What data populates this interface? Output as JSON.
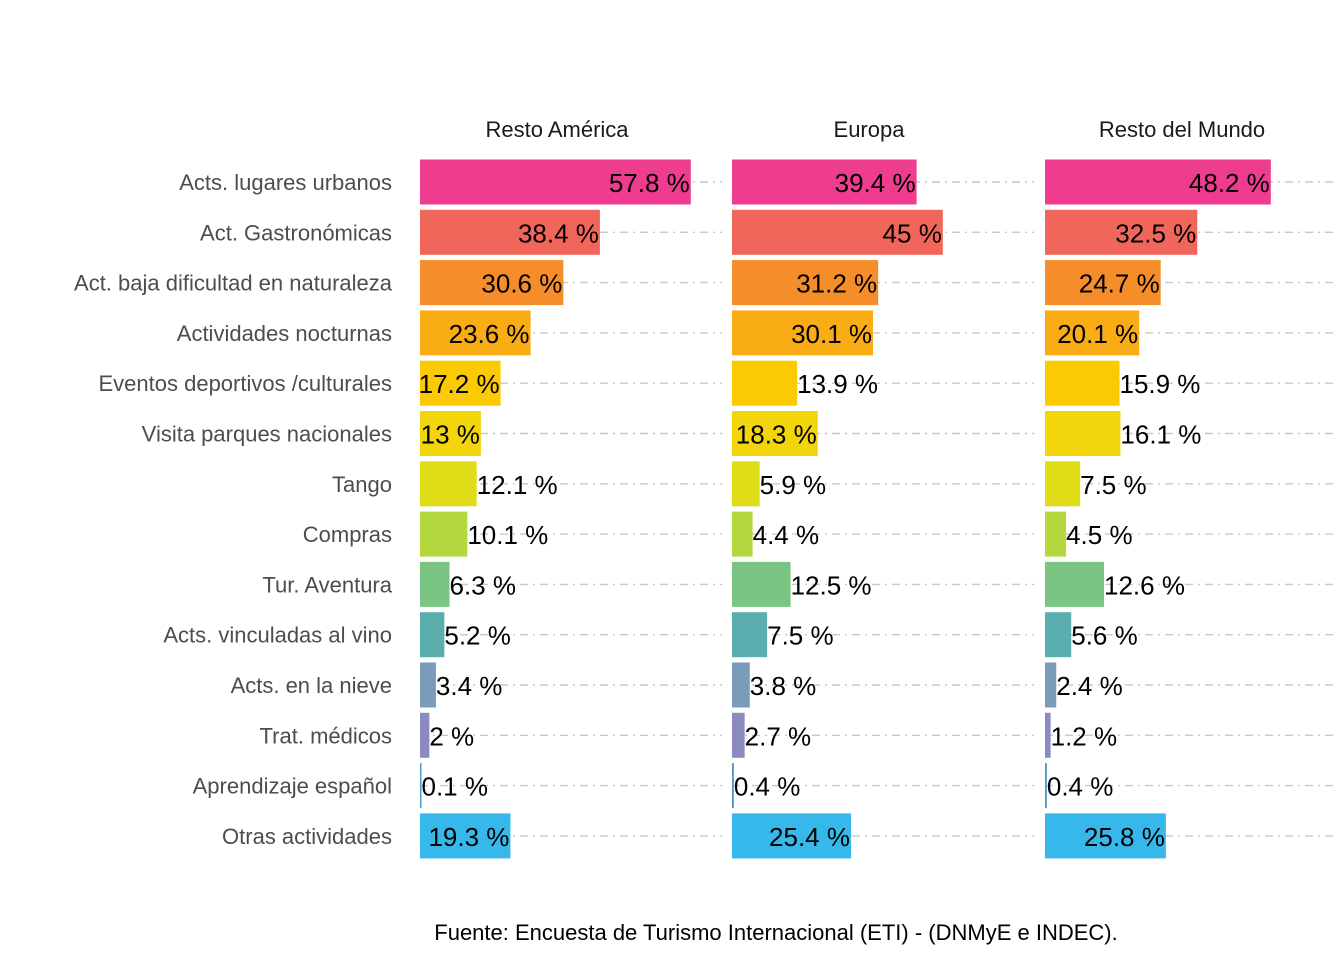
{
  "chart_data": {
    "type": "bar",
    "orientation": "horizontal",
    "faceted": true,
    "unit": "%",
    "caption": "Fuente: Encuesta de Turismo Internacional (ETI) - (DNMyE e INDEC).",
    "categories": [
      "Acts. lugares urbanos",
      "Act. Gastronómicas",
      "Act. baja dificultad en naturaleza",
      "Actividades nocturnas",
      "Eventos deportivos /culturales",
      "Visita parques nacionales",
      "Tango",
      "Compras",
      "Tur. Aventura",
      "Acts. vinculadas al vino",
      "Acts. en la nieve",
      "Trat. médicos",
      "Aprendizaje español",
      "Otras actividades"
    ],
    "colors": [
      "#ee3d8f",
      "#f1665a",
      "#f68d2b",
      "#f9ac14",
      "#fcca02",
      "#f2d50b",
      "#dedd17",
      "#b4d83d",
      "#7bc582",
      "#5aaeae",
      "#7a9cbb",
      "#8b8bc1",
      "#4f98c9",
      "#36b9ea"
    ],
    "panels": [
      {
        "name": "Resto América",
        "values": [
          57.8,
          38.4,
          30.6,
          23.6,
          17.2,
          13,
          12.1,
          10.1,
          6.3,
          5.2,
          3.4,
          2,
          0.1,
          19.3
        ],
        "labels": [
          "57.8 %",
          "38.4 %",
          "30.6 %",
          "23.6 %",
          "17.2 %",
          "13 %",
          "12.1 %",
          "10.1 %",
          "6.3 %",
          "5.2 %",
          "3.4 %",
          "2 %",
          "0.1 %",
          "19.3 %"
        ]
      },
      {
        "name": "Europa",
        "values": [
          39.4,
          45,
          31.2,
          30.1,
          13.9,
          18.3,
          5.9,
          4.4,
          12.5,
          7.5,
          3.8,
          2.7,
          0.4,
          25.4
        ],
        "labels": [
          "39.4 %",
          "45 %",
          "31.2 %",
          "30.1 %",
          "13.9 %",
          "18.3 %",
          "5.9 %",
          "4.4 %",
          "12.5 %",
          "7.5 %",
          "3.8 %",
          "2.7 %",
          "0.4 %",
          "25.4 %"
        ]
      },
      {
        "name": "Resto del Mundo",
        "values": [
          48.2,
          32.5,
          24.7,
          20.1,
          15.9,
          16.1,
          7.5,
          4.5,
          12.6,
          5.6,
          2.4,
          1.2,
          0.4,
          25.8
        ],
        "labels": [
          "48.2 %",
          "32.5 %",
          "24.7 %",
          "20.1 %",
          "15.9 %",
          "16.1 %",
          "7.5 %",
          "4.5 %",
          "12.6 %",
          "5.6 %",
          "2.4 %",
          "1.2 %",
          "0.4 %",
          "25.8 %"
        ]
      }
    ],
    "grid": true,
    "legend": "none"
  }
}
